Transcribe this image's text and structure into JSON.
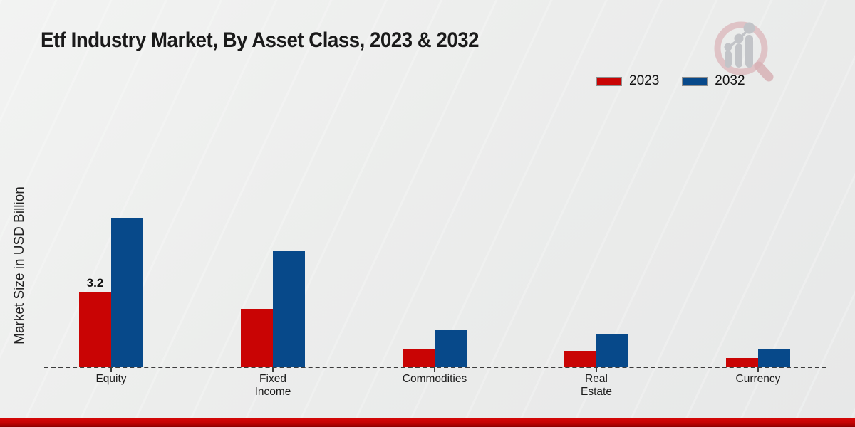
{
  "title": "Etf Industry Market, By Asset Class, 2023 & 2032",
  "y_axis_title": "Market Size in USD Billion",
  "legend": {
    "items": [
      {
        "label": "2023",
        "color": "#c90404"
      },
      {
        "label": "2032",
        "color": "#07498a"
      }
    ]
  },
  "logo": {
    "name": "magnifier-growth-chart-logo"
  },
  "colors": {
    "series_2023": "#c90404",
    "series_2032": "#07498a",
    "background": "#ecedec",
    "baseline": "#3c3c3c",
    "bottom_band": "#c30303"
  },
  "chart_data": {
    "type": "bar",
    "title": "Etf Industry Market, By Asset Class, 2023 & 2032",
    "xlabel": "",
    "ylabel": "Market Size in USD Billion",
    "categories": [
      "Equity",
      "Fixed Income",
      "Commodities",
      "Real Estate",
      "Currency"
    ],
    "series": [
      {
        "name": "2023",
        "color": "#c90404",
        "values": [
          3.2,
          2.5,
          0.8,
          0.7,
          0.4
        ]
      },
      {
        "name": "2032",
        "color": "#07498a",
        "values": [
          6.4,
          5.0,
          1.6,
          1.4,
          0.8
        ]
      }
    ],
    "data_labels": [
      {
        "series": "2023",
        "category": "Equity",
        "text": "3.2"
      }
    ],
    "ylim": [
      0,
      7
    ],
    "grid": false,
    "y_axis_ticks_visible": false,
    "baseline_style": "dashed",
    "legend_position": "top-right"
  }
}
